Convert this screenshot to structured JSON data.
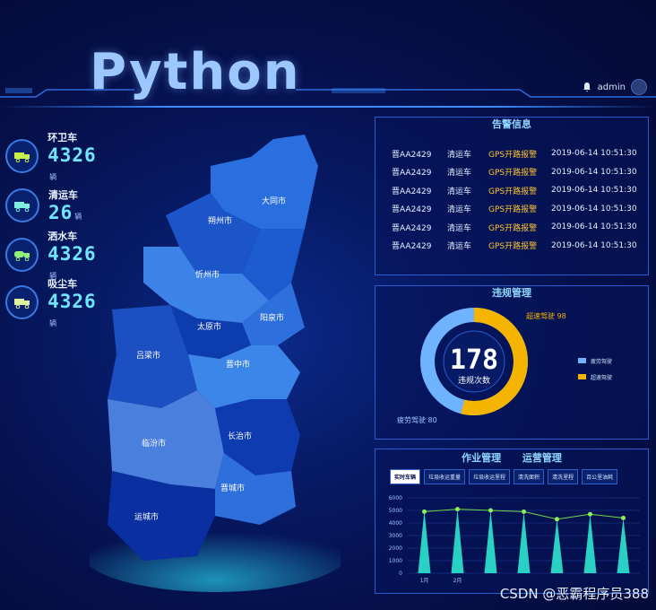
{
  "header": {
    "title": "Python",
    "user": "admin"
  },
  "vehicles": [
    {
      "name": "环卫车",
      "count": "4326",
      "unit": "辆"
    },
    {
      "name": "清运车",
      "count": "26",
      "unit": "辆"
    },
    {
      "name": "洒水车",
      "count": "4326",
      "unit": "辆"
    },
    {
      "name": "吸尘车",
      "count": "4326",
      "unit": "辆"
    }
  ],
  "map": {
    "regions": [
      "大同市",
      "朔州市",
      "忻州市",
      "阳泉市",
      "太原市",
      "吕梁市",
      "晋中市",
      "临汾市",
      "长治市",
      "晋城市",
      "运城市"
    ]
  },
  "alarm": {
    "title": "告警信息",
    "rows": [
      {
        "plate": "晋AA2429",
        "type": "清运车",
        "alarm": "GPS开路报警",
        "time": "2019-06-14 10:51:30"
      },
      {
        "plate": "晋AA2429",
        "type": "清运车",
        "alarm": "GPS开路报警",
        "time": "2019-06-14 10:51:30"
      },
      {
        "plate": "晋AA2429",
        "type": "清运车",
        "alarm": "GPS开路报警",
        "time": "2019-06-14 10:51:30"
      },
      {
        "plate": "晋AA2429",
        "type": "清运车",
        "alarm": "GPS开路报警",
        "time": "2019-06-14 10:51:30"
      },
      {
        "plate": "晋AA2429",
        "type": "清运车",
        "alarm": "GPS开路报警",
        "time": "2019-06-14 10:51:30"
      },
      {
        "plate": "晋AA2429",
        "type": "清运车",
        "alarm": "GPS开路报警",
        "time": "2019-06-14 10:51:30"
      }
    ]
  },
  "violation": {
    "title": "违规管理",
    "total": "178",
    "total_label": "违规次数",
    "fatigue_label": "疲劳驾驶 80",
    "speed_label": "超速驾驶 98",
    "legend_fatigue": "疲劳驾驶",
    "legend_speed": "超速驾驶",
    "colors": {
      "fatigue": "#6fb3ff",
      "speed": "#f5b400"
    }
  },
  "ops": {
    "tab_work": "作业管理",
    "tab_ops": "运营管理",
    "subtabs": [
      "实时车辆",
      "垃圾收运重量",
      "垃圾收运里程",
      "清洗面积",
      "清洗里程",
      "百公里油耗"
    ]
  },
  "chart_data": {
    "type": "bar",
    "y_ticks": [
      "6000",
      "5000",
      "4000",
      "3000",
      "2000",
      "1000",
      "0"
    ],
    "ylim": [
      0,
      6000
    ],
    "x_tick_labels": [
      "1月",
      "2月"
    ],
    "bars": [
      5000,
      5100,
      5000,
      4900,
      4300,
      4700,
      4400
    ],
    "line": [
      4900,
      5100,
      5000,
      4900,
      4300,
      4700,
      4400
    ]
  },
  "watermark": "CSDN @恶霸程序员388"
}
